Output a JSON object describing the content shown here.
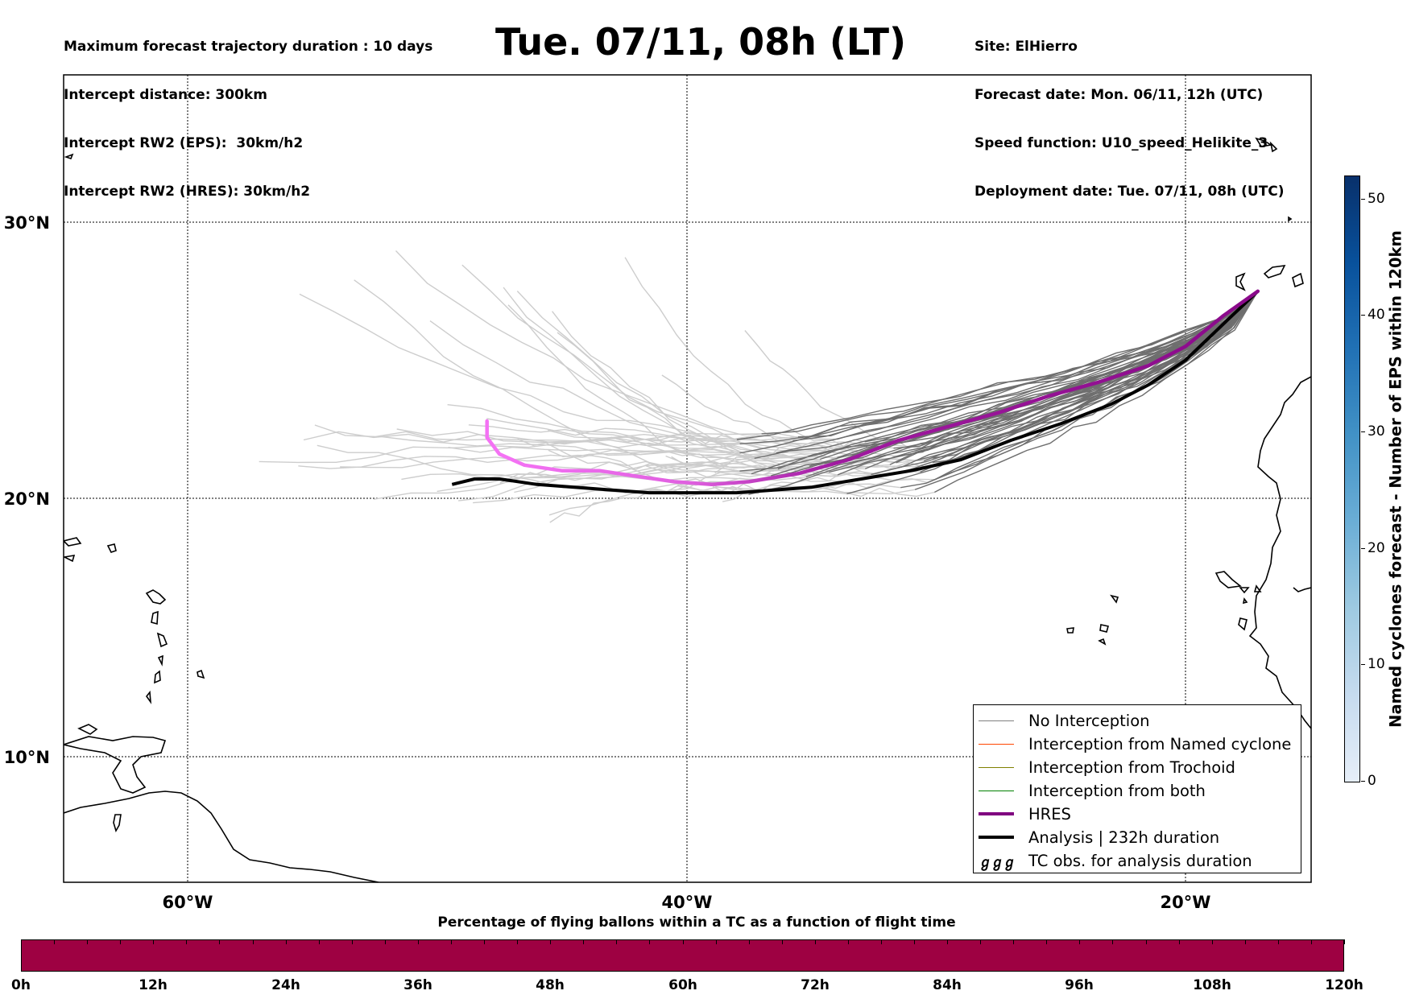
{
  "header": {
    "left": [
      "Maximum forecast trajectory duration : 10 days",
      "Intercept distance: 300km",
      "Intercept RW2 (EPS):  30km/h2",
      "Intercept RW2 (HRES): 30km/h2"
    ],
    "title": "Tue. 07/11, 08h (LT)",
    "right": [
      "Site: ElHierro",
      "Forecast date: Mon. 06/11, 12h (UTC)",
      "Speed function: U10_speed_Helikite_3",
      "Deployment date: Tue. 07/11, 08h (UTC)"
    ]
  },
  "map": {
    "lat_labels": [
      "30°N",
      "20°N",
      "10°N"
    ],
    "lon_labels": [
      "60°W",
      "40°W",
      "20°W"
    ],
    "lon_range": [
      -65,
      -15
    ],
    "lat_range": [
      5.3,
      34.5
    ],
    "colors": {
      "eps_far": "#cccccc",
      "eps_near": "#6e6e6e",
      "hres_start": "#8b0a8b",
      "hres_end": "#f26bf2",
      "analysis": "#000000"
    },
    "hres_track": [
      [
        -17.1,
        27.5
      ],
      [
        -18.5,
        26.6
      ],
      [
        -20.0,
        25.5
      ],
      [
        -21.5,
        24.8
      ],
      [
        -23.5,
        24.2
      ],
      [
        -25.5,
        23.7
      ],
      [
        -27.5,
        23.1
      ],
      [
        -29.5,
        22.6
      ],
      [
        -31.5,
        22.1
      ],
      [
        -33.5,
        21.4
      ],
      [
        -35.5,
        20.9
      ],
      [
        -37.5,
        20.6
      ],
      [
        -39.0,
        20.5
      ],
      [
        -40.5,
        20.6
      ],
      [
        -42.0,
        20.8
      ],
      [
        -43.5,
        21.0
      ],
      [
        -45.0,
        21.0
      ],
      [
        -46.5,
        21.2
      ],
      [
        -47.5,
        21.6
      ],
      [
        -48.0,
        22.2
      ],
      [
        -48.0,
        22.8
      ]
    ],
    "analysis_track": [
      [
        -17.1,
        27.5
      ],
      [
        -18.5,
        26.3
      ],
      [
        -20.0,
        25.0
      ],
      [
        -21.5,
        24.1
      ],
      [
        -23.0,
        23.4
      ],
      [
        -25.0,
        22.7
      ],
      [
        -27.0,
        22.1
      ],
      [
        -29.0,
        21.4
      ],
      [
        -31.0,
        21.0
      ],
      [
        -33.0,
        20.7
      ],
      [
        -35.0,
        20.4
      ],
      [
        -36.5,
        20.3
      ],
      [
        -38.0,
        20.2
      ],
      [
        -40.0,
        20.2
      ],
      [
        -41.5,
        20.2
      ],
      [
        -43.0,
        20.3
      ],
      [
        -44.5,
        20.4
      ],
      [
        -46.0,
        20.5
      ],
      [
        -47.5,
        20.7
      ],
      [
        -48.5,
        20.7
      ],
      [
        -49.4,
        20.5
      ]
    ]
  },
  "legend": [
    {
      "label": "No Interception",
      "color": "#7f7f7f",
      "kind": "line",
      "width": 1.5
    },
    {
      "label": "Interception from Named cyclone",
      "color": "#ff4500",
      "kind": "line",
      "width": 1.5
    },
    {
      "label": "Interception from Trochoid",
      "color": "#808000",
      "kind": "line",
      "width": 1.5
    },
    {
      "label": "Interception from both",
      "color": "#008000",
      "kind": "line",
      "width": 1.5
    },
    {
      "label": "HRES",
      "color": "#800080",
      "kind": "line",
      "width": 4
    },
    {
      "label": "Analysis | 232h duration",
      "color": "#000000",
      "kind": "line",
      "width": 4
    },
    {
      "label": "TC obs. for analysis duration",
      "color": "#000000",
      "kind": "symbol",
      "symbol": "ℊℊℊ"
    }
  ],
  "colorbar": {
    "title": "Named cyclones forecast - Number of EPS within 120km",
    "ticks": [
      "0",
      "10",
      "20",
      "30",
      "40",
      "50"
    ],
    "max": 52
  },
  "bottom_bar": {
    "title": "Percentage of flying ballons within a TC as a function of flight time",
    "ticks": [
      "0h",
      "12h",
      "24h",
      "36h",
      "48h",
      "60h",
      "72h",
      "84h",
      "96h",
      "108h",
      "120h"
    ],
    "color": "#9e0142"
  }
}
